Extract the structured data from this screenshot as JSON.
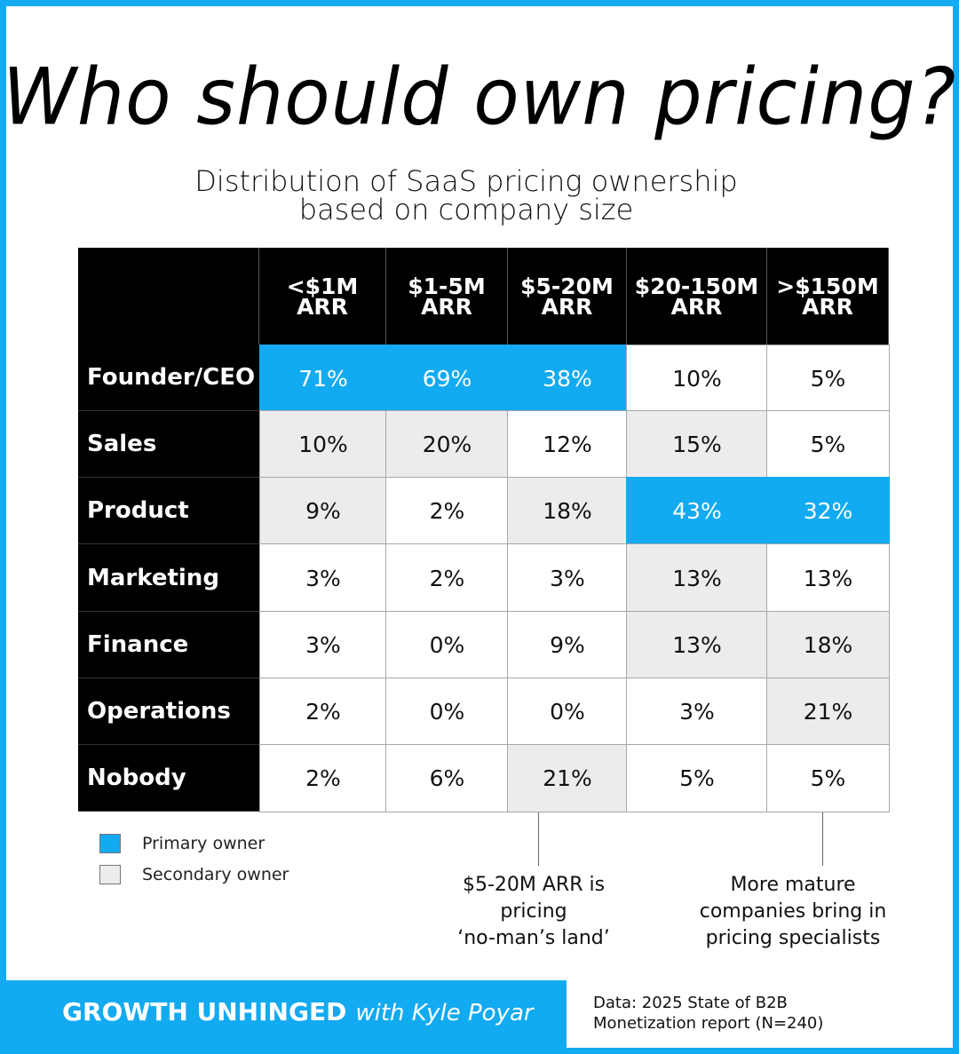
{
  "title": "Who should own pricing?",
  "subtitle_line1": "Distribution of SaaS pricing ownership",
  "subtitle_line2": "based on company size",
  "colors": {
    "primary": "#12aaf0",
    "secondary": "#ececec",
    "none": "#ffffff",
    "header": "#000000"
  },
  "chart_data": {
    "type": "table",
    "title": "Who should own pricing?",
    "subtitle": "Distribution of SaaS pricing ownership based on company size",
    "columns": [
      {
        "line1": "<$1M",
        "line2": "ARR"
      },
      {
        "line1": "$1-5M",
        "line2": "ARR"
      },
      {
        "line1": "$5-20M",
        "line2": "ARR"
      },
      {
        "line1": "$20-150M",
        "line2": "ARR"
      },
      {
        "line1": ">$150M",
        "line2": "ARR"
      }
    ],
    "rows": [
      {
        "label": "Founder/CEO",
        "values": [
          "71%",
          "69%",
          "38%",
          "10%",
          "5%"
        ],
        "owner": [
          "primary",
          "primary",
          "primary",
          "none",
          "none"
        ]
      },
      {
        "label": "Sales",
        "values": [
          "10%",
          "20%",
          "12%",
          "15%",
          "5%"
        ],
        "owner": [
          "secondary",
          "secondary",
          "none",
          "secondary",
          "none"
        ]
      },
      {
        "label": "Product",
        "values": [
          "9%",
          "2%",
          "18%",
          "43%",
          "32%"
        ],
        "owner": [
          "secondary",
          "none",
          "secondary",
          "primary",
          "primary"
        ]
      },
      {
        "label": "Marketing",
        "values": [
          "3%",
          "2%",
          "3%",
          "13%",
          "13%"
        ],
        "owner": [
          "none",
          "none",
          "none",
          "secondary",
          "none"
        ]
      },
      {
        "label": "Finance",
        "values": [
          "3%",
          "0%",
          "9%",
          "13%",
          "18%"
        ],
        "owner": [
          "none",
          "none",
          "none",
          "secondary",
          "secondary"
        ]
      },
      {
        "label": "Operations",
        "values": [
          "2%",
          "0%",
          "0%",
          "3%",
          "21%"
        ],
        "owner": [
          "none",
          "none",
          "none",
          "none",
          "secondary"
        ]
      },
      {
        "label": "Nobody",
        "values": [
          "2%",
          "6%",
          "21%",
          "5%",
          "5%"
        ],
        "owner": [
          "none",
          "none",
          "secondary",
          "none",
          "none"
        ]
      }
    ],
    "legend": [
      {
        "key": "primary",
        "label": "Primary owner"
      },
      {
        "key": "secondary",
        "label": "Secondary owner"
      }
    ]
  },
  "notes": [
    {
      "lines": [
        "$5-20M ARR is",
        "pricing",
        "‘no-man’s land’"
      ]
    },
    {
      "lines": [
        "More mature",
        "companies bring in",
        "pricing specialists"
      ]
    }
  ],
  "footer": {
    "brand": "GROWTH UNHINGED",
    "brand_with": "with Kyle Poyar",
    "source_line1": "Data: 2025 State of B2B",
    "source_line2": "Monetization report (N=240)"
  }
}
